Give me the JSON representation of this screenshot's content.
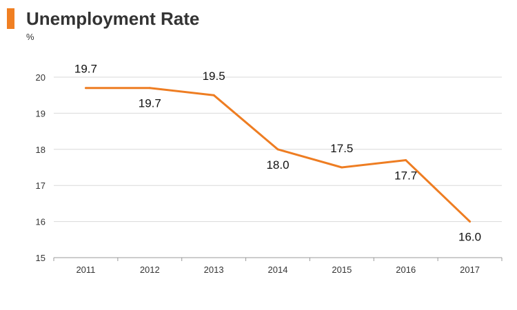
{
  "title": "Unemployment Rate",
  "unit": "%",
  "colors": {
    "accent": "#F07F22",
    "line": "#EE7D22",
    "grid": "#D9D9D9",
    "axis": "#999999",
    "text": "#333333"
  },
  "chart_data": {
    "type": "line",
    "title": "Unemployment Rate",
    "xlabel": "",
    "ylabel": "%",
    "categories": [
      "2011",
      "2012",
      "2013",
      "2014",
      "2015",
      "2016",
      "2017"
    ],
    "series": [
      {
        "values": [
          19.7,
          19.7,
          19.5,
          18.0,
          17.5,
          17.7,
          16.0
        ]
      }
    ],
    "data_labels": [
      "19.7",
      "19.7",
      "19.5",
      "18.0",
      "17.5",
      "17.7",
      "16.0"
    ],
    "label_positions": [
      "above",
      "below",
      "above",
      "below",
      "above",
      "below",
      "below"
    ],
    "ylim": [
      15,
      20
    ],
    "yticks": [
      15,
      16,
      17,
      18,
      19,
      20
    ],
    "grid": true,
    "legend": "none"
  }
}
